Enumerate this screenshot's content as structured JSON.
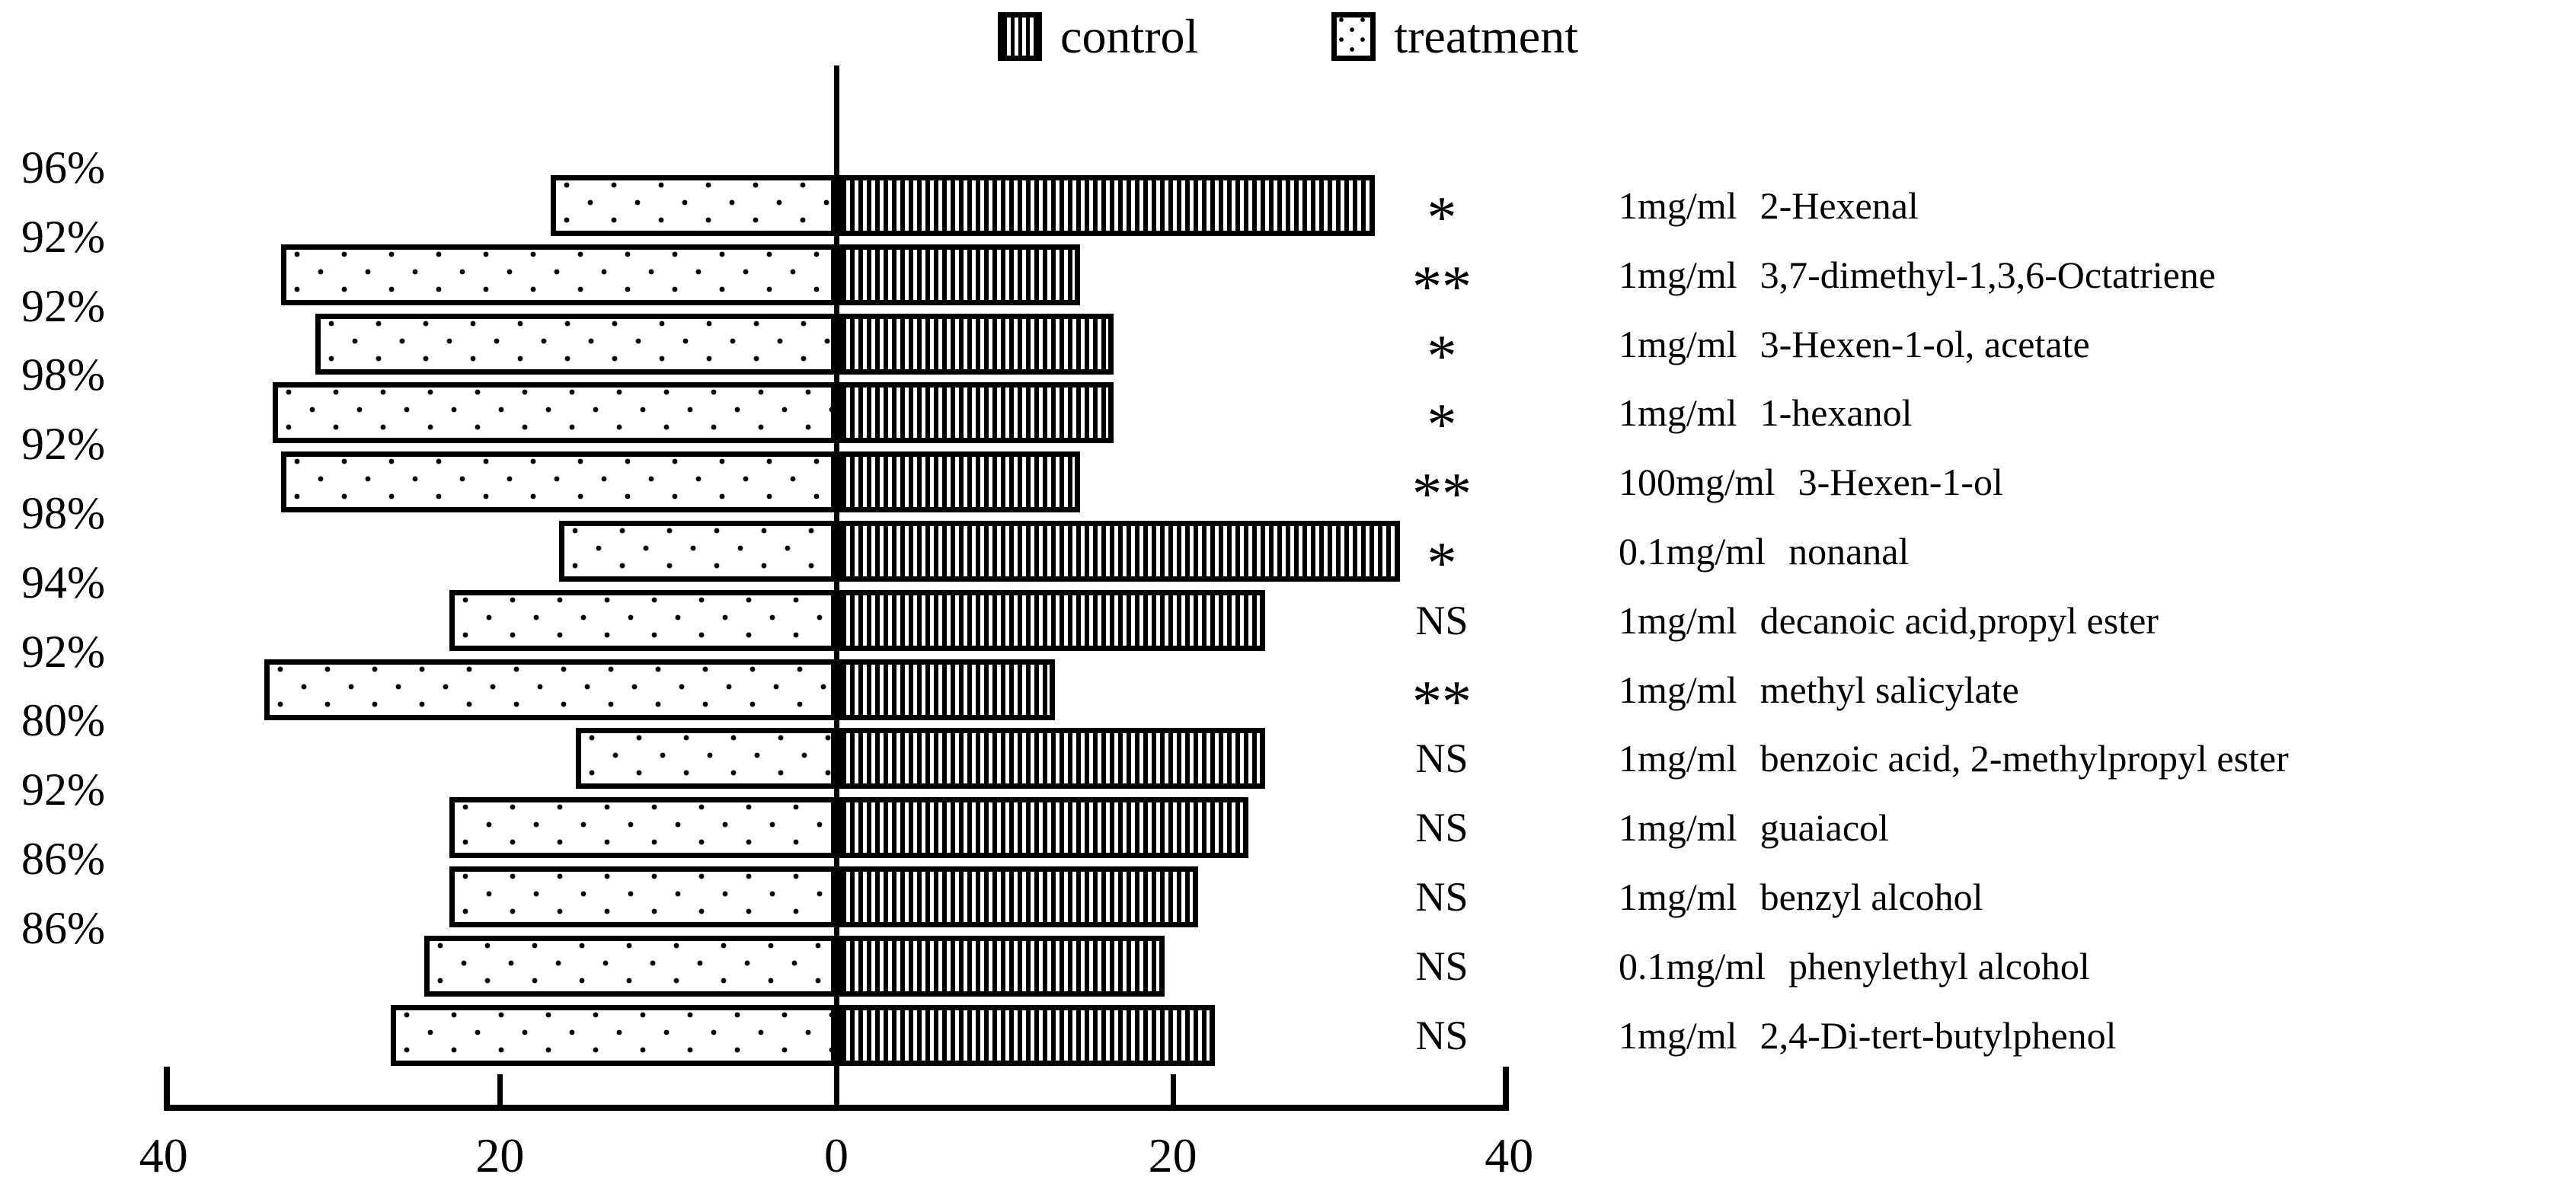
{
  "legend": {
    "items": [
      {
        "label": "control",
        "pattern": "vertical-stripes"
      },
      {
        "label": "treatment",
        "pattern": "dots"
      }
    ]
  },
  "chart_data": {
    "type": "bar",
    "subtype": "diverging-horizontal-bars",
    "title": "",
    "grid": false,
    "legend_position": "top-center",
    "x_axis": {
      "tick_labels": [
        "40",
        "20",
        "0",
        "20",
        "40"
      ],
      "tick_values": [
        -40,
        -20,
        0,
        20,
        40
      ],
      "range_each_side": 40
    },
    "series": [
      {
        "name": "control",
        "pattern": "vertical-stripes",
        "side": "right"
      },
      {
        "name": "treatment",
        "pattern": "dots",
        "side": "left"
      }
    ],
    "rows": [
      {
        "percent": "96%",
        "dose": "1mg/ml",
        "compound": "2-Hexenal",
        "significance": "*",
        "treatment": 17,
        "control": 32
      },
      {
        "percent": "92%",
        "dose": "1mg/ml",
        "compound": "3,7-dimethyl-1,3,6-Octatriene",
        "significance": "**",
        "treatment": 33,
        "control": 14.5
      },
      {
        "percent": "92%",
        "dose": "1mg/ml",
        "compound": "3-Hexen-1-ol, acetate",
        "significance": "*",
        "treatment": 31,
        "control": 16.5
      },
      {
        "percent": "98%",
        "dose": "1mg/ml",
        "compound": "1-hexanol",
        "significance": "*",
        "treatment": 33.5,
        "control": 16.5
      },
      {
        "percent": "92%",
        "dose": "100mg/ml",
        "compound": "3-Hexen-1-ol",
        "significance": "**",
        "treatment": 33,
        "control": 14.5
      },
      {
        "percent": "98%",
        "dose": "0.1mg/ml",
        "compound": "nonanal",
        "significance": "*",
        "treatment": 16.5,
        "control": 33.5
      },
      {
        "percent": "94%",
        "dose": "1mg/ml",
        "compound": "decanoic acid,propyl ester",
        "significance": "NS",
        "treatment": 23,
        "control": 25.5
      },
      {
        "percent": "92%",
        "dose": "1mg/ml",
        "compound": "methyl salicylate",
        "significance": "**",
        "treatment": 34,
        "control": 13
      },
      {
        "percent": "80%",
        "dose": "1mg/ml",
        "compound": "benzoic acid, 2-methylpropyl ester",
        "significance": "NS",
        "treatment": 15.5,
        "control": 25.5
      },
      {
        "percent": "92%",
        "dose": "1mg/ml",
        "compound": "guaiacol",
        "significance": "NS",
        "treatment": 23,
        "control": 24.5
      },
      {
        "percent": "86%",
        "dose": "1mg/ml",
        "compound": "benzyl alcohol",
        "significance": "NS",
        "treatment": 23,
        "control": 21.5
      },
      {
        "percent": "86%",
        "dose": "0.1mg/ml",
        "compound": "phenylethyl alcohol",
        "significance": "NS",
        "treatment": 24.5,
        "control": 19.5
      },
      {
        "percent": "",
        "dose": "1mg/ml",
        "compound": "2,4-Di-tert-butylphenol",
        "significance": "NS",
        "treatment": 26.5,
        "control": 22.5
      }
    ]
  }
}
